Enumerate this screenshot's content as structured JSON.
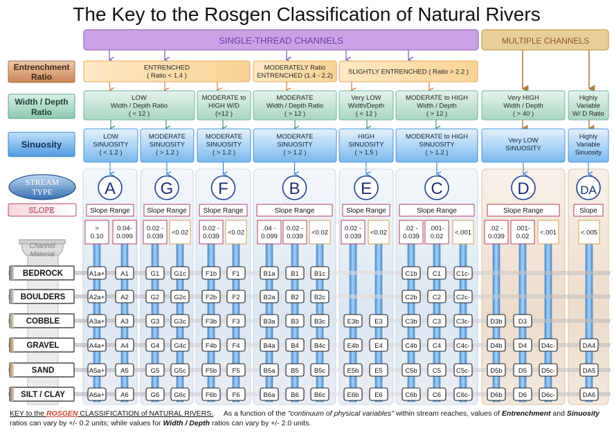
{
  "title": "The Key to the Rosgen Classification of Natural Rivers",
  "groups": {
    "single": "SINGLE-THREAD  CHANNELS",
    "multiple": "MULTIPLE  CHANNELS"
  },
  "row_labels": {
    "entrenchment": [
      "Entrenchment",
      "Ratio"
    ],
    "wd": [
      "Width / Depth",
      "Ratio"
    ],
    "sinuosity": "Sinuosity",
    "stream_type": [
      "STREAM",
      "TYPE"
    ],
    "slope": "SLOPE",
    "channel_material": [
      "Channel",
      "Material"
    ]
  },
  "entrenchment_boxes": [
    {
      "lines": [
        "ENTRENCHED",
        "( Ratio < 1.4 )"
      ]
    },
    {
      "lines": [
        "MODERATELY  Ratio",
        "ENTRENCHED (1.4 - 2.2)"
      ]
    },
    {
      "lines": [
        "SLIGHTLY  ENTRENCHED ( Ratio > 2.2 )"
      ]
    }
  ],
  "wd_boxes": [
    {
      "lines": [
        "LOW",
        "Width / Depth Ratio",
        "( < 12 )"
      ]
    },
    {
      "lines": [
        "MODERATE to",
        "HIGH  W/D",
        "(>12 )"
      ]
    },
    {
      "lines": [
        "MODERATE",
        "Width / Depth Ratio",
        "( > 12 )"
      ]
    },
    {
      "lines": [
        "Very LOW",
        "Width/Depth",
        "( < 12 )"
      ]
    },
    {
      "lines": [
        "MODERATE to HIGH",
        "Width / Depth",
        "( > 12 )"
      ]
    },
    {
      "lines": [
        "Very HIGH",
        "Width / Depth",
        "( > 40 )"
      ]
    },
    {
      "lines": [
        "Highly",
        "Variable",
        "W/ D Ratio"
      ]
    }
  ],
  "sinuosity_boxes": [
    {
      "lines": [
        "LOW",
        "SINUOSITY",
        "( < 1.2 )"
      ]
    },
    {
      "lines": [
        "MODERATE",
        "SINUOSITY",
        "( > 1.2 )"
      ]
    },
    {
      "lines": [
        "MODERATE",
        "SINUOSITY",
        "( > 1.2 )"
      ]
    },
    {
      "lines": [
        "MODERATE",
        "SINUOSITY",
        "( > 1.2 )"
      ]
    },
    {
      "lines": [
        "HIGH",
        "SINUOSITY",
        "( > 1.5 )"
      ]
    },
    {
      "lines": [
        "MODERATE to HIGH",
        "SINUOSITY",
        "( > 1.2 )"
      ]
    },
    {
      "lines": [
        "Very LOW",
        "SINUOSITY"
      ]
    },
    {
      "lines": [
        "Highly",
        "Variable",
        "Sinuosity"
      ]
    }
  ],
  "stream_types": [
    {
      "letter": "A",
      "slope_label": "Slope Range",
      "slopes": [
        [
          "> ",
          "0.10"
        ],
        [
          "0.04-",
          "0.099"
        ]
      ],
      "codes": [
        [
          "A1a+",
          "A1"
        ],
        [
          "A2a+",
          "A2"
        ],
        [
          "A3a+",
          "A3"
        ],
        [
          "A4a+",
          "A4"
        ],
        [
          "A5a+",
          "A5"
        ],
        [
          "A6a+",
          "A6"
        ]
      ]
    },
    {
      "letter": "G",
      "slope_label": "Slope Range",
      "slopes": [
        [
          "0.02 -",
          "0.039"
        ],
        [
          "<0.02"
        ]
      ],
      "codes": [
        [
          "G1",
          "G1c"
        ],
        [
          "G2",
          "G2c"
        ],
        [
          "G3",
          "G3c"
        ],
        [
          "G4",
          "G4c"
        ],
        [
          "G5",
          "G5c"
        ],
        [
          "G6",
          "G6c"
        ]
      ]
    },
    {
      "letter": "F",
      "slope_label": "Slope Range",
      "slopes": [
        [
          "0.02 -",
          "0.039"
        ],
        [
          "<0.02"
        ]
      ],
      "codes": [
        [
          "F1b",
          "F1"
        ],
        [
          "F2b",
          "F2"
        ],
        [
          "F3b",
          "F3"
        ],
        [
          "F4b",
          "F4"
        ],
        [
          "F5b",
          "F5"
        ],
        [
          "F6b",
          "F6"
        ]
      ]
    },
    {
      "letter": "B",
      "slope_label": "Slope  Range",
      "slopes": [
        [
          ".04 -",
          "0.099"
        ],
        [
          "0.02 -",
          "0.039"
        ],
        [
          "<0.02"
        ]
      ],
      "codes": [
        [
          "B1a",
          "B1",
          "B1c"
        ],
        [
          "B2a",
          "B2",
          "B2c"
        ],
        [
          "B3a",
          "B3",
          "B3c"
        ],
        [
          "B4a",
          "B4",
          "B4c"
        ],
        [
          "B5a",
          "B5",
          "B5c"
        ],
        [
          "B6a",
          "B6",
          "B6c"
        ]
      ]
    },
    {
      "letter": "E",
      "slope_label": "Slope Range",
      "slopes": [
        [
          "0.02 -",
          "0.039"
        ],
        [
          "<0.02"
        ]
      ],
      "codes": [
        [
          "",
          ""
        ],
        [
          "",
          ""
        ],
        [
          "E3b",
          "E3"
        ],
        [
          "E4b",
          "E4"
        ],
        [
          "E5b",
          "E5"
        ],
        [
          "E6b",
          "E6"
        ]
      ]
    },
    {
      "letter": "C",
      "slope_label": "Slope  Range",
      "slopes": [
        [
          ".02 -",
          "0.039"
        ],
        [
          ".001-",
          "0.02"
        ],
        [
          "<.001"
        ]
      ],
      "codes": [
        [
          "C1b",
          "C1",
          "C1c-"
        ],
        [
          "C2b",
          "C2",
          "C2c-"
        ],
        [
          "C3b",
          "C3",
          "C3c-"
        ],
        [
          "C4b",
          "C4",
          "C4c-"
        ],
        [
          "C5b",
          "C5",
          "C5c-"
        ],
        [
          "C6b",
          "C6",
          "C6c-"
        ]
      ]
    },
    {
      "letter": "D",
      "slope_label": "Slope  Range",
      "slopes": [
        [
          ".02 -",
          "0.039"
        ],
        [
          ".001-",
          "0.02"
        ],
        [
          "<.001"
        ]
      ],
      "codes": [
        [
          "",
          "",
          ""
        ],
        [
          "",
          "",
          ""
        ],
        [
          "D3b",
          "D3",
          ""
        ],
        [
          "D4b",
          "D4",
          "D4c-"
        ],
        [
          "D5b",
          "D5",
          "D5c-"
        ],
        [
          "D6b",
          "D6",
          "D6c-"
        ]
      ]
    },
    {
      "letter": "DA",
      "slope_label": "Slope",
      "slopes": [
        [
          "<.005"
        ]
      ],
      "codes": [
        [
          ""
        ],
        [
          ""
        ],
        [
          ""
        ],
        [
          "DA4"
        ],
        [
          "DA5"
        ],
        [
          "DA6"
        ]
      ]
    }
  ],
  "materials": [
    "BEDROCK",
    "BOULDERS",
    "COBBLE",
    "GRAVEL",
    "SAND",
    "SILT / CLAY"
  ],
  "footer": {
    "key_prefix": "KEY to the ",
    "key_name": "ROSGEN",
    "key_suffix": "  CLASSIFICATION of NATURAL RIVERS.",
    "text1": "As a function of the ",
    "continuum": "\"continuum of physical variables\"",
    "text2": " within stream reaches, values of ",
    "entrenchment": "Entrenchment",
    "text3": " and ",
    "sinuosity": "Sinuosity",
    "text4": " ratios can vary by +/- 0.2 units; while values for ",
    "wd": "Width / Depth",
    "text5": " ratios can vary by +/- 2.0 units."
  },
  "colors": {
    "group_single": "#c9a3e6",
    "group_multiple": "#e8cf95",
    "entrenchment_box": "#fbdda7",
    "wd_box": "#b7dccd",
    "sinuosity_box": "#8fc4ee",
    "row_label_brown": "#d2966b",
    "row_label_green": "#9fd4bd",
    "row_label_blue": "#6aaee8",
    "slope_border": "#b0415a",
    "stream_panel": "#dfe9f3",
    "stream_panel_multi": "#efe3d6",
    "shaft": "#6fa8dd"
  }
}
